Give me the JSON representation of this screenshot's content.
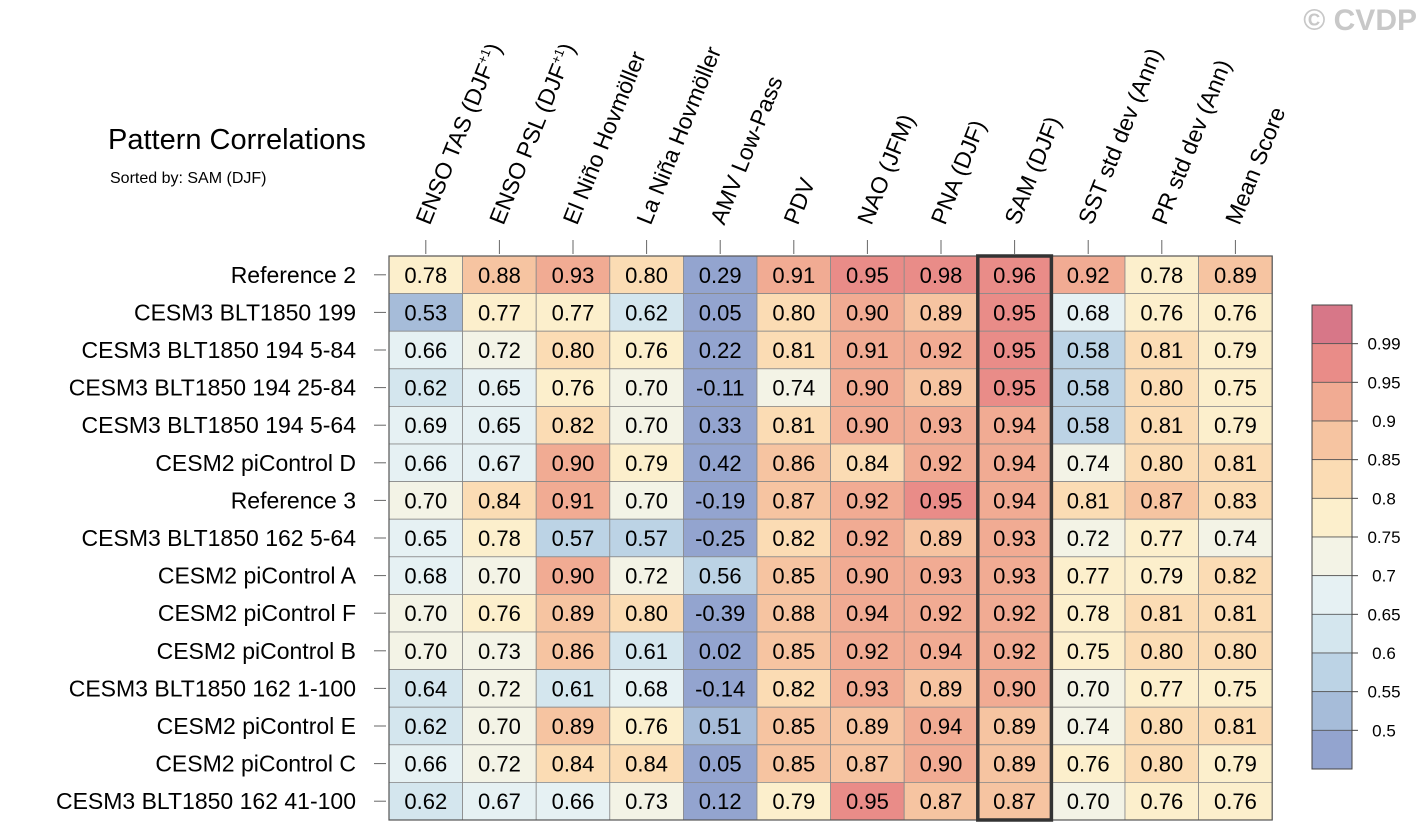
{
  "watermark": "© CVDP",
  "chart_data": {
    "type": "heatmap",
    "title": "Pattern Correlations",
    "subtitle": "Sorted by: SAM (DJF)",
    "columns": [
      {
        "text": "ENSO TAS (DJF",
        "sup": "+1",
        "end": ")"
      },
      {
        "text": "ENSO PSL (DJF",
        "sup": "+1",
        "end": ")"
      },
      {
        "text": "El Niño Hovmöller"
      },
      {
        "text": "La Niña Hovmöller"
      },
      {
        "text": "AMV Low-Pass"
      },
      {
        "text": "PDV"
      },
      {
        "text": "NAO (JFM)"
      },
      {
        "text": "PNA (DJF)"
      },
      {
        "text": "SAM (DJF)"
      },
      {
        "text": "SST std dev (Ann)"
      },
      {
        "text": "PR std dev (Ann)"
      },
      {
        "text": "Mean Score"
      }
    ],
    "highlighted_column": 8,
    "rows": [
      "Reference 2",
      "CESM3 BLT1850 199",
      "CESM3 BLT1850 194 5-84",
      "CESM3 BLT1850 194 25-84",
      "CESM3 BLT1850 194 5-64",
      "CESM2 piControl D",
      "Reference 3",
      "CESM3 BLT1850 162 5-64",
      "CESM2 piControl A",
      "CESM2 piControl F",
      "CESM2 piControl B",
      "CESM3 BLT1850 162 1-100",
      "CESM2 piControl E",
      "CESM2 piControl C",
      "CESM3 BLT1850 162 41-100"
    ],
    "values": [
      [
        "0.78",
        "0.88",
        "0.93",
        "0.80",
        "0.29",
        "0.91",
        "0.95",
        "0.98",
        "0.96",
        "0.92",
        "0.78",
        "0.89"
      ],
      [
        "0.53",
        "0.77",
        "0.77",
        "0.62",
        "0.05",
        "0.80",
        "0.90",
        "0.89",
        "0.95",
        "0.68",
        "0.76",
        "0.76"
      ],
      [
        "0.66",
        "0.72",
        "0.80",
        "0.76",
        "0.22",
        "0.81",
        "0.91",
        "0.92",
        "0.95",
        "0.58",
        "0.81",
        "0.79"
      ],
      [
        "0.62",
        "0.65",
        "0.76",
        "0.70",
        "-0.11",
        "0.74",
        "0.90",
        "0.89",
        "0.95",
        "0.58",
        "0.80",
        "0.75"
      ],
      [
        "0.69",
        "0.65",
        "0.82",
        "0.70",
        "0.33",
        "0.81",
        "0.90",
        "0.93",
        "0.94",
        "0.58",
        "0.81",
        "0.79"
      ],
      [
        "0.66",
        "0.67",
        "0.90",
        "0.79",
        "0.42",
        "0.86",
        "0.84",
        "0.92",
        "0.94",
        "0.74",
        "0.80",
        "0.81"
      ],
      [
        "0.70",
        "0.84",
        "0.91",
        "0.70",
        "-0.19",
        "0.87",
        "0.92",
        "0.95",
        "0.94",
        "0.81",
        "0.87",
        "0.83"
      ],
      [
        "0.65",
        "0.78",
        "0.57",
        "0.57",
        "-0.25",
        "0.82",
        "0.92",
        "0.89",
        "0.93",
        "0.72",
        "0.77",
        "0.74"
      ],
      [
        "0.68",
        "0.70",
        "0.90",
        "0.72",
        "0.56",
        "0.85",
        "0.90",
        "0.93",
        "0.93",
        "0.77",
        "0.79",
        "0.82"
      ],
      [
        "0.70",
        "0.76",
        "0.89",
        "0.80",
        "-0.39",
        "0.88",
        "0.94",
        "0.92",
        "0.92",
        "0.78",
        "0.81",
        "0.81"
      ],
      [
        "0.70",
        "0.73",
        "0.86",
        "0.61",
        "0.02",
        "0.85",
        "0.92",
        "0.94",
        "0.92",
        "0.75",
        "0.80",
        "0.80"
      ],
      [
        "0.64",
        "0.72",
        "0.61",
        "0.68",
        "-0.14",
        "0.82",
        "0.93",
        "0.89",
        "0.90",
        "0.70",
        "0.77",
        "0.75"
      ],
      [
        "0.62",
        "0.70",
        "0.89",
        "0.76",
        "0.51",
        "0.85",
        "0.89",
        "0.94",
        "0.89",
        "0.74",
        "0.80",
        "0.81"
      ],
      [
        "0.66",
        "0.72",
        "0.84",
        "0.84",
        "0.05",
        "0.85",
        "0.87",
        "0.90",
        "0.89",
        "0.76",
        "0.80",
        "0.79"
      ],
      [
        "0.62",
        "0.67",
        "0.66",
        "0.73",
        "0.12",
        "0.79",
        "0.95",
        "0.87",
        "0.87",
        "0.70",
        "0.76",
        "0.76"
      ]
    ],
    "colorbar": {
      "thresholds": [
        0.5,
        0.55,
        0.6,
        0.65,
        0.7,
        0.75,
        0.8,
        0.85,
        0.9,
        0.95,
        0.99
      ],
      "labels": [
        "0.5",
        "0.55",
        "0.6",
        "0.65",
        "0.7",
        "0.75",
        "0.8",
        "0.85",
        "0.9",
        "0.95",
        "0.99"
      ],
      "colors": [
        "#93a4cf",
        "#a6bcd9",
        "#bcd3e5",
        "#d4e6ee",
        "#e6f1f3",
        "#f3f3e6",
        "#fcefcc",
        "#fbdcb4",
        "#f6c4a1",
        "#f1ab93",
        "#e98c88",
        "#d77788"
      ]
    }
  }
}
